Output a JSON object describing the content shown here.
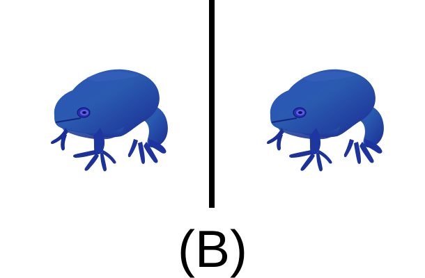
{
  "figure": {
    "caption": "(B)",
    "left_image_icon": "blue-frog-icon",
    "right_image_icon": "blue-frog-icon",
    "colors": {
      "frog_body": "#1f3fa6",
      "frog_shade": "#16298a",
      "frog_highlight": "#2f5fb8",
      "divider": "#000000",
      "background": "#ffffff"
    }
  }
}
